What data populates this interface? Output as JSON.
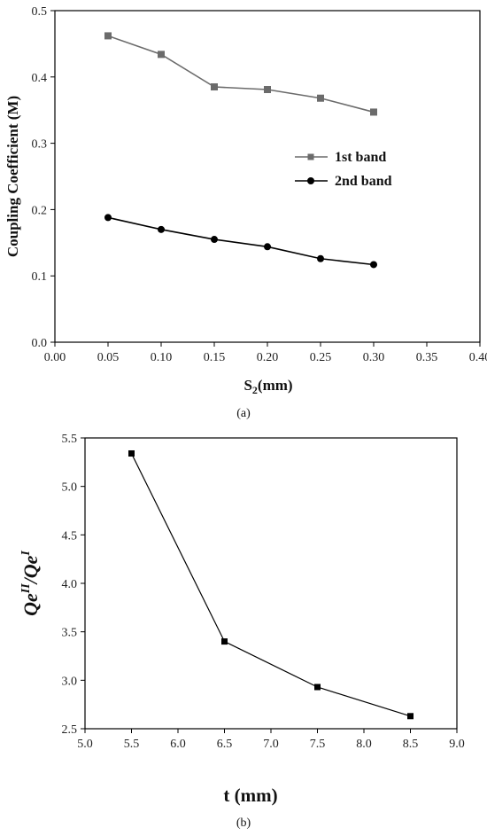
{
  "chart_data": [
    {
      "type": "line",
      "xlabel": {
        "main": "S",
        "sub": "2",
        "rest": "(mm)"
      },
      "ylabel": "Coupling Coefficient (M)",
      "caption": "(a)",
      "xlim": [
        0.0,
        0.4
      ],
      "ylim": [
        0.0,
        0.5
      ],
      "xticks": [
        "0.00",
        "0.05",
        "0.10",
        "0.15",
        "0.20",
        "0.25",
        "0.30",
        "0.35",
        "0.40"
      ],
      "yticks": [
        "0.0",
        "0.1",
        "0.2",
        "0.3",
        "0.4",
        "0.5"
      ],
      "x": [
        0.05,
        0.1,
        0.15,
        0.2,
        0.25,
        0.3
      ],
      "legend_position": "right-middle",
      "series": [
        {
          "name": "1st band",
          "marker": "square",
          "color": "#6b6b6b",
          "values": [
            0.462,
            0.434,
            0.385,
            0.381,
            0.368,
            0.347
          ]
        },
        {
          "name": "2nd band",
          "marker": "circle",
          "color": "#000000",
          "values": [
            0.188,
            0.17,
            0.155,
            0.144,
            0.126,
            0.117
          ]
        }
      ]
    },
    {
      "type": "line",
      "xlabel": "t (mm)",
      "ylabel": {
        "q1": "Qe",
        "s1": "II",
        "slash": "/",
        "q2": "Qe",
        "s2": "I"
      },
      "caption": "(b)",
      "xlim": [
        5.0,
        9.0
      ],
      "ylim": [
        2.5,
        5.5
      ],
      "xticks": [
        "5.0",
        "5.5",
        "6.0",
        "6.5",
        "7.0",
        "7.5",
        "8.0",
        "8.5",
        "9.0"
      ],
      "yticks": [
        "2.5",
        "3.0",
        "3.5",
        "4.0",
        "4.5",
        "5.0",
        "5.5"
      ],
      "x": [
        5.5,
        6.5,
        7.5,
        8.5
      ],
      "series": [
        {
          "marker": "square",
          "color": "#000000",
          "values": [
            5.34,
            3.4,
            2.93,
            2.63
          ]
        }
      ]
    }
  ]
}
